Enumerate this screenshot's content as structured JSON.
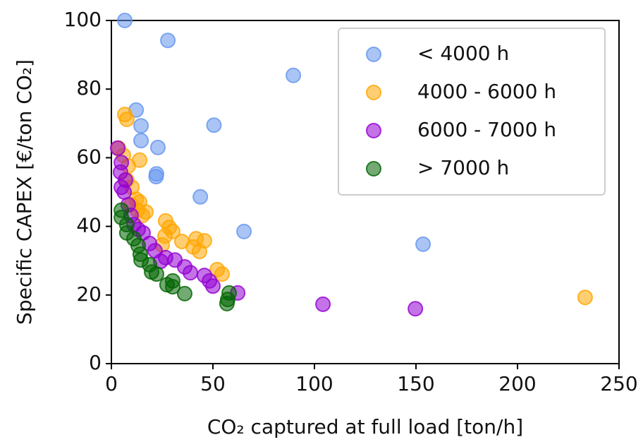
{
  "chart_data": {
    "type": "scatter",
    "xlabel": "CO₂ captured at full load [ton/h]",
    "ylabel": "Specific CAPEX [€/ton CO₂]",
    "xlim": [
      0,
      250
    ],
    "xticks": [
      0,
      50,
      100,
      150,
      200,
      250
    ],
    "ylim": [
      0,
      100
    ],
    "yticks": [
      0,
      20,
      40,
      60,
      80,
      100
    ],
    "legend": "upper right",
    "series": [
      {
        "name": "< 4000 h",
        "color": "#6495ed",
        "x": [
          6.6,
          27.8,
          89.6,
          12.2,
          14.6,
          50.5,
          14.6,
          22.9,
          22.2,
          22,
          43.8,
          65.3,
          153.5
        ],
        "values": [
          100,
          94.2,
          84,
          73.9,
          69.3,
          69.5,
          65,
          63,
          55.3,
          54.5,
          48.6,
          38.5,
          34.8
        ]
      },
      {
        "name": "4000 - 6000 h",
        "color": "#ffa500",
        "x": [
          6.6,
          7.6,
          3.5,
          5.9,
          13.9,
          8.3,
          7.6,
          10.1,
          12.2,
          13.9,
          9.7,
          12.8,
          17,
          15.3,
          26.7,
          28.5,
          30.2,
          26.4,
          41.7,
          45.8,
          34.7,
          40.3,
          25,
          43.4,
          52.1,
          54.5,
          233.3
        ],
        "values": [
          72.6,
          71.2,
          62.8,
          60.7,
          59.3,
          57.6,
          53.5,
          51.4,
          47.9,
          47.1,
          46.3,
          44.7,
          44.2,
          43.2,
          41.6,
          39.7,
          38.5,
          37.2,
          36.4,
          35.8,
          35.6,
          34,
          34.6,
          32.7,
          27.4,
          26.1,
          19.3
        ]
      },
      {
        "name": "6000 - 7000 h",
        "color": "#9400d3",
        "x": [
          3.1,
          4.9,
          4.5,
          6.9,
          4.9,
          6.3,
          8.3,
          9.7,
          11.1,
          13.2,
          15.6,
          18.8,
          21.5,
          26.7,
          31.3,
          24.3,
          36.1,
          38.9,
          45.8,
          48.3,
          50,
          62.2,
          104.2,
          149.7
        ],
        "values": [
          62.8,
          58.6,
          55.8,
          53.5,
          51.4,
          50,
          46.3,
          43.2,
          40.5,
          39.1,
          38.1,
          35,
          32.9,
          30.9,
          30.2,
          29.8,
          28.2,
          26.5,
          25.7,
          24.1,
          22.6,
          20.6,
          17.3,
          16
        ]
      },
      {
        "name": "> 7000 h",
        "color": "#006400",
        "x": [
          4.9,
          4.9,
          7.6,
          7.6,
          11.1,
          13.2,
          14.2,
          14.6,
          18.8,
          19.8,
          22.2,
          30.2,
          27.4,
          30.2,
          36.1,
          58,
          57.3,
          56.9
        ],
        "values": [
          44.7,
          42.6,
          40.5,
          38.1,
          36.4,
          34.4,
          31.9,
          30.2,
          28.8,
          26.7,
          26.1,
          24.1,
          23,
          22.4,
          20.4,
          20.6,
          18.7,
          17.5
        ]
      }
    ]
  }
}
